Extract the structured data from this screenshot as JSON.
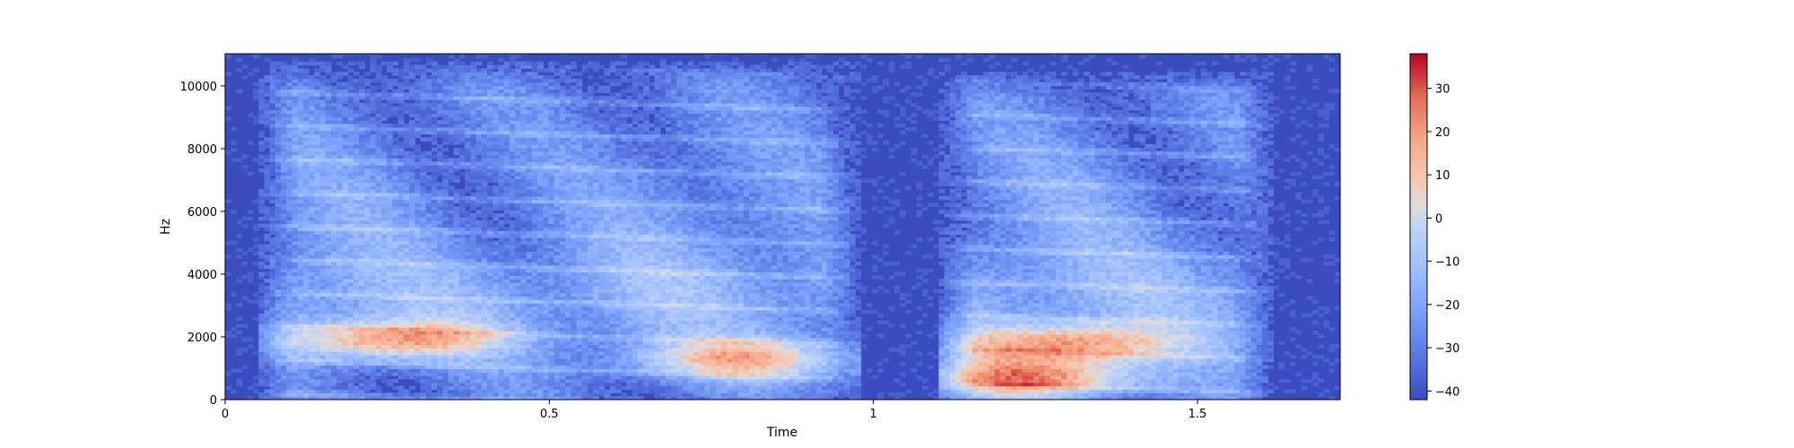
{
  "chart_data": {
    "type": "heatmap",
    "subtype": "spectrogram",
    "title": "",
    "xlabel": "Time",
    "ylabel": "Hz",
    "xlim": [
      0,
      1.72
    ],
    "ylim": [
      0,
      11025
    ],
    "x_ticks": [
      0,
      0.5,
      1,
      1.5
    ],
    "x_tick_labels": [
      "0",
      "0.5",
      "1",
      "1.5"
    ],
    "y_ticks": [
      0,
      2000,
      4000,
      6000,
      8000,
      10000
    ],
    "y_tick_labels": [
      "0",
      "2000",
      "4000",
      "6000",
      "8000",
      "10000"
    ],
    "colormap": "coolwarm",
    "colorbar": {
      "range": [
        -42,
        38
      ],
      "ticks": [
        -40,
        -30,
        -20,
        -10,
        0,
        10,
        20,
        30
      ],
      "tick_labels": [
        "−40",
        "−30",
        "−20",
        "−10",
        "0",
        "10",
        "20",
        "30"
      ]
    },
    "grid": false,
    "voiced_segments": [
      {
        "t_start": 0.05,
        "t_end": 0.98,
        "max_freq_hz": 10800
      },
      {
        "t_start": 1.1,
        "t_end": 1.62,
        "max_freq_hz": 10500
      }
    ],
    "energy_peaks": [
      {
        "t": 0.25,
        "freq_hz": 1900,
        "db": 15
      },
      {
        "t": 0.8,
        "freq_hz": 1300,
        "db": 10
      },
      {
        "t": 1.3,
        "freq_hz": 1800,
        "db": 18
      },
      {
        "t": 1.25,
        "freq_hz": 700,
        "db": 22
      }
    ],
    "background_db": -40
  }
}
